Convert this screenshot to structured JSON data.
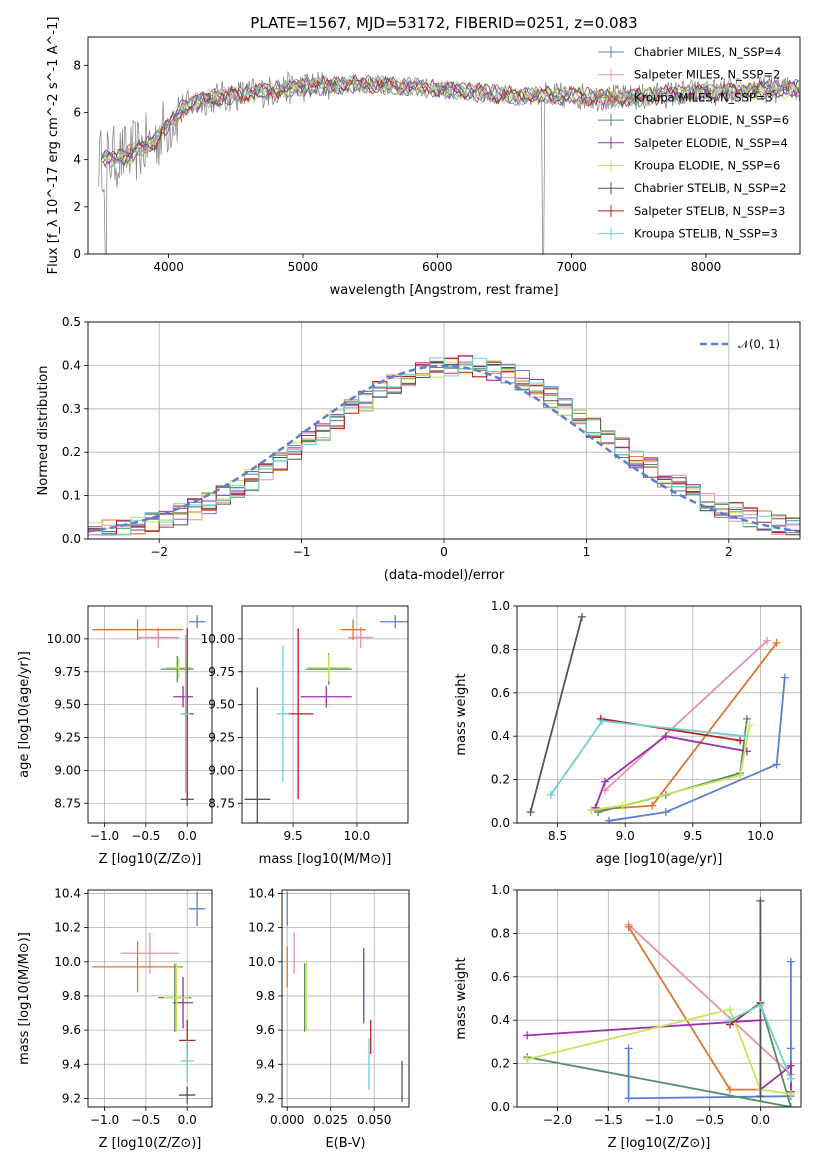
{
  "chart_data": [
    {
      "type": "line",
      "title": "PLATE=1567, MJD=53172, FIBERID=0251, z=0.083",
      "xlabel": "wavelength [Angstrom, rest frame]",
      "ylabel": "Flux [f_λ 10^-17 erg cm^-2 s^-1 A^-1]",
      "xlim": [
        3400,
        8700
      ],
      "ylim": [
        0,
        9.2
      ],
      "xticks": [
        4000,
        5000,
        6000,
        7000,
        8000
      ],
      "yticks": [
        0,
        2,
        4,
        6,
        8
      ],
      "grid": false,
      "legend_position": "right",
      "continuum": {
        "x": [
          3500,
          3700,
          3900,
          4100,
          4300,
          4600,
          5000,
          5400,
          5800,
          6200,
          6600,
          7000,
          7400,
          7800,
          8200,
          8600
        ],
        "y": [
          4.0,
          4.2,
          4.8,
          6.2,
          6.6,
          6.8,
          7.1,
          7.2,
          7.1,
          6.9,
          6.7,
          6.7,
          6.6,
          6.8,
          6.9,
          7.0
        ]
      },
      "legend": [
        {
          "name": "Chabrier MILES, N_SSP=4",
          "color": "#5b7fd1"
        },
        {
          "name": "Salpeter MILES, N_SSP=2",
          "color": "#e88fb5"
        },
        {
          "name": "Kroupa MILES, N_SSP=3",
          "color": "#e0752a"
        },
        {
          "name": "Chabrier ELODIE, N_SSP=6",
          "color": "#5a8a64"
        },
        {
          "name": "Salpeter ELODIE, N_SSP=4",
          "color": "#9b30b0"
        },
        {
          "name": "Kroupa ELODIE, N_SSP=6",
          "color": "#c8e65a"
        },
        {
          "name": "Chabrier STELIB, N_SSP=2",
          "color": "#555555"
        },
        {
          "name": "Salpeter STELIB, N_SSP=3",
          "color": "#b22222"
        },
        {
          "name": "Kroupa STELIB, N_SSP=3",
          "color": "#6fd0d0"
        }
      ]
    },
    {
      "type": "histogram",
      "xlabel": "(data-model)/error",
      "ylabel": "Normed distribution",
      "xlim": [
        -2.5,
        2.5
      ],
      "ylim": [
        0,
        0.5
      ],
      "xticks": [
        -2,
        -1,
        0,
        1,
        2
      ],
      "yticks": [
        0.0,
        0.1,
        0.2,
        0.3,
        0.4,
        0.5
      ],
      "grid": true,
      "legend": [
        {
          "name": "𝒩(0, 1)",
          "color": "#5b7fd1",
          "style": "dashed"
        }
      ],
      "legend_position": "top-right",
      "bin_width": 0.1
    },
    {
      "type": "scatter",
      "xlabel": "Z [log10(Z/Z⊙)]",
      "ylabel": "age [log10(age/yr)]",
      "xlim": [
        -1.2,
        0.3
      ],
      "ylim": [
        8.6,
        10.25
      ],
      "xticks": [
        -1.0,
        -0.5,
        0.0
      ],
      "yticks": [
        8.75,
        9.0,
        9.25,
        9.5,
        9.75,
        10.0
      ],
      "grid": true,
      "points": [
        {
          "x": 0.12,
          "y": 10.13,
          "xerr": 0.1,
          "yerr": 0.05,
          "color": "#5b7fd1"
        },
        {
          "x": -0.35,
          "y": 10.01,
          "xerr": 0.25,
          "yerr": 0.08,
          "color": "#e88fb5"
        },
        {
          "x": -0.6,
          "y": 10.07,
          "xerr": 0.55,
          "yerr": 0.08,
          "color": "#e0752a"
        },
        {
          "x": -0.12,
          "y": 9.77,
          "xerr": 0.2,
          "yerr": 0.1,
          "color": "#5a8a64"
        },
        {
          "x": -0.05,
          "y": 9.56,
          "xerr": 0.12,
          "yerr": 0.08,
          "color": "#9b30b0"
        },
        {
          "x": -0.1,
          "y": 9.78,
          "xerr": 0.15,
          "yerr": 0.08,
          "color": "#c8e65a"
        },
        {
          "x": 0.0,
          "y": 8.78,
          "xerr": 0.08,
          "yerr": 0.05,
          "color": "#555555"
        },
        {
          "x": 0.0,
          "y": 9.43,
          "xerr": 0.08,
          "yerr": 0.65,
          "color": "#b22222"
        },
        {
          "x": -0.02,
          "y": 9.43,
          "xerr": 0.06,
          "yerr": 0.6,
          "color": "#6fd0d0"
        }
      ]
    },
    {
      "type": "scatter",
      "xlabel": "mass [log10(M/M⊙)]",
      "ylabel": "",
      "xlim": [
        9.1,
        10.4
      ],
      "ylim": [
        8.6,
        10.25
      ],
      "xticks": [
        9.5,
        10.0
      ],
      "yticks": [
        8.75,
        9.0,
        9.25,
        9.5,
        9.75,
        10.0
      ],
      "grid": true,
      "points": [
        {
          "x": 10.3,
          "y": 10.13,
          "xerr": 0.12,
          "yerr": 0.05,
          "color": "#5b7fd1"
        },
        {
          "x": 10.03,
          "y": 10.01,
          "xerr": 0.1,
          "yerr": 0.08,
          "color": "#e88fb5"
        },
        {
          "x": 9.97,
          "y": 10.07,
          "xerr": 0.1,
          "yerr": 0.08,
          "color": "#e0752a"
        },
        {
          "x": 9.78,
          "y": 9.77,
          "xerr": 0.18,
          "yerr": 0.12,
          "color": "#5a8a64"
        },
        {
          "x": 9.76,
          "y": 9.56,
          "xerr": 0.2,
          "yerr": 0.08,
          "color": "#9b30b0"
        },
        {
          "x": 9.78,
          "y": 9.78,
          "xerr": 0.16,
          "yerr": 0.1,
          "color": "#c8e65a"
        },
        {
          "x": 9.22,
          "y": 8.78,
          "xerr": 0.1,
          "yerr": 0.85,
          "color": "#555555"
        },
        {
          "x": 9.54,
          "y": 9.43,
          "xerr": 0.12,
          "yerr": 0.65,
          "color": "#b22222"
        },
        {
          "x": 9.42,
          "y": 9.43,
          "xerr": 0.05,
          "yerr": 0.52,
          "color": "#6fd0d0"
        }
      ]
    },
    {
      "type": "line",
      "xlabel": "age [log10(age/yr)]",
      "ylabel": "mass weight",
      "xlim": [
        8.2,
        10.3
      ],
      "ylim": [
        0,
        1.0
      ],
      "xticks": [
        8.5,
        9.0,
        9.5,
        10.0
      ],
      "yticks": [
        0.0,
        0.2,
        0.4,
        0.6,
        0.8,
        1.0
      ],
      "grid": true,
      "series": [
        {
          "color": "#5b7fd1",
          "x": [
            10.18,
            10.12,
            9.3,
            8.88
          ],
          "y": [
            0.67,
            0.27,
            0.05,
            0.01
          ]
        },
        {
          "color": "#e88fb5",
          "x": [
            10.05,
            8.85
          ],
          "y": [
            0.84,
            0.15
          ]
        },
        {
          "color": "#e0752a",
          "x": [
            10.12,
            9.2,
            8.75
          ],
          "y": [
            0.83,
            0.08,
            0.06
          ]
        },
        {
          "color": "#5a8a64",
          "x": [
            9.9,
            9.85,
            9.3,
            8.8
          ],
          "y": [
            0.48,
            0.23,
            0.13,
            0.05
          ]
        },
        {
          "color": "#9b30b0",
          "x": [
            9.9,
            9.3,
            8.85,
            8.78
          ],
          "y": [
            0.33,
            0.4,
            0.19,
            0.07
          ]
        },
        {
          "color": "#c8e65a",
          "x": [
            9.92,
            9.85,
            8.98,
            8.75
          ],
          "y": [
            0.45,
            0.22,
            0.08,
            0.06
          ]
        },
        {
          "color": "#555555",
          "x": [
            8.3,
            8.68
          ],
          "y": [
            0.05,
            0.95
          ]
        },
        {
          "color": "#b22222",
          "x": [
            9.85,
            8.82
          ],
          "y": [
            0.38,
            0.48
          ]
        },
        {
          "color": "#6fd0d0",
          "x": [
            9.88,
            8.83,
            8.45
          ],
          "y": [
            0.4,
            0.47,
            0.13
          ]
        }
      ]
    },
    {
      "type": "scatter",
      "xlabel": "Z [log10(Z/Z⊙)]",
      "ylabel": "mass [log10(M/M⊙)]",
      "xlim": [
        -1.2,
        0.3
      ],
      "ylim": [
        9.15,
        10.42
      ],
      "xticks": [
        -1.0,
        -0.5,
        0.0
      ],
      "yticks": [
        9.2,
        9.4,
        9.6,
        9.8,
        10.0,
        10.2,
        10.4
      ],
      "grid": true,
      "points": [
        {
          "x": 0.12,
          "y": 10.31,
          "xerr": 0.1,
          "yerr": 0.1,
          "color": "#5b7fd1"
        },
        {
          "x": -0.45,
          "y": 10.05,
          "xerr": 0.35,
          "yerr": 0.12,
          "color": "#e88fb5"
        },
        {
          "x": -0.6,
          "y": 9.97,
          "xerr": 0.55,
          "yerr": 0.15,
          "color": "#e0752a"
        },
        {
          "x": -0.15,
          "y": 9.79,
          "xerr": 0.2,
          "yerr": 0.2,
          "color": "#5a8a64"
        },
        {
          "x": -0.05,
          "y": 9.76,
          "xerr": 0.12,
          "yerr": 0.15,
          "color": "#9b30b0"
        },
        {
          "x": -0.13,
          "y": 9.79,
          "xerr": 0.15,
          "yerr": 0.2,
          "color": "#c8e65a"
        },
        {
          "x": 0.0,
          "y": 9.22,
          "xerr": 0.1,
          "yerr": 0.05,
          "color": "#555555"
        },
        {
          "x": 0.0,
          "y": 9.54,
          "xerr": 0.1,
          "yerr": 0.12,
          "color": "#b22222"
        },
        {
          "x": 0.0,
          "y": 9.42,
          "xerr": 0.08,
          "yerr": 0.12,
          "color": "#6fd0d0"
        }
      ]
    },
    {
      "type": "scatter",
      "xlabel": "E(B-V)",
      "ylabel": "",
      "xlim": [
        -0.003,
        0.07
      ],
      "ylim": [
        9.15,
        10.42
      ],
      "xticks": [
        0.0,
        0.025,
        0.05
      ],
      "yticks": [
        9.2,
        9.4,
        9.6,
        9.8,
        10.0,
        10.2,
        10.4
      ],
      "grid": true,
      "points": [
        {
          "x": 0.0,
          "y": 10.31,
          "xerr": 0,
          "yerr": 0.1,
          "color": "#5b7fd1"
        },
        {
          "x": 0.004,
          "y": 10.05,
          "xerr": 0,
          "yerr": 0.12,
          "color": "#e88fb5"
        },
        {
          "x": 0.0,
          "y": 9.97,
          "xerr": 0,
          "yerr": 0.12,
          "color": "#e0752a"
        },
        {
          "x": 0.01,
          "y": 9.79,
          "xerr": 0,
          "yerr": 0.2,
          "color": "#5a8a64"
        },
        {
          "x": 0.044,
          "y": 9.86,
          "xerr": 0,
          "yerr": 0.22,
          "color": "#9b30b0"
        },
        {
          "x": 0.011,
          "y": 9.8,
          "xerr": 0,
          "yerr": 0.2,
          "color": "#c8e65a"
        },
        {
          "x": 0.066,
          "y": 9.3,
          "xerr": 0,
          "yerr": 0.12,
          "color": "#555555"
        },
        {
          "x": 0.048,
          "y": 9.56,
          "xerr": 0,
          "yerr": 0.1,
          "color": "#b22222"
        },
        {
          "x": 0.047,
          "y": 9.4,
          "xerr": 0,
          "yerr": 0.15,
          "color": "#6fd0d0"
        }
      ]
    },
    {
      "type": "line",
      "xlabel": "Z [log10(Z/Z⊙)]",
      "ylabel": "mass weight",
      "xlim": [
        -2.4,
        0.4
      ],
      "ylim": [
        0,
        1.0
      ],
      "xticks": [
        -2.0,
        -1.5,
        -1.0,
        -0.5,
        0.0
      ],
      "yticks": [
        0.0,
        0.2,
        0.4,
        0.6,
        0.8,
        1.0
      ],
      "grid": true,
      "series": [
        {
          "color": "#5b7fd1",
          "x": [
            0.3,
            0.3,
            0.3,
            -1.3,
            -1.3
          ],
          "y": [
            0.67,
            0.27,
            0.05,
            0.04,
            0.27
          ]
        },
        {
          "color": "#e88fb5",
          "x": [
            -1.3,
            0.3
          ],
          "y": [
            0.84,
            0.15
          ]
        },
        {
          "color": "#e0752a",
          "x": [
            -1.3,
            -0.3,
            0.0
          ],
          "y": [
            0.83,
            0.08,
            0.08
          ]
        },
        {
          "color": "#5a8a64",
          "x": [
            0.0,
            0.3,
            -2.3
          ],
          "y": [
            0.48,
            0.0,
            0.23
          ]
        },
        {
          "color": "#9b30b0",
          "x": [
            -2.3,
            0.0,
            0.0,
            0.3,
            0.3
          ],
          "y": [
            0.33,
            0.4,
            0.08,
            0.19,
            0.07
          ]
        },
        {
          "color": "#c8e65a",
          "x": [
            -2.3,
            -0.3,
            0.0,
            0.3
          ],
          "y": [
            0.22,
            0.45,
            0.08,
            0.06
          ]
        },
        {
          "color": "#555555",
          "x": [
            0.0,
            0.0
          ],
          "y": [
            0.95,
            0.05
          ]
        },
        {
          "color": "#b22222",
          "x": [
            -0.3,
            0.0
          ],
          "y": [
            0.38,
            0.48
          ]
        },
        {
          "color": "#6fd0d0",
          "x": [
            -0.3,
            0.0,
            0.3
          ],
          "y": [
            0.4,
            0.47,
            0.13
          ]
        }
      ]
    }
  ]
}
